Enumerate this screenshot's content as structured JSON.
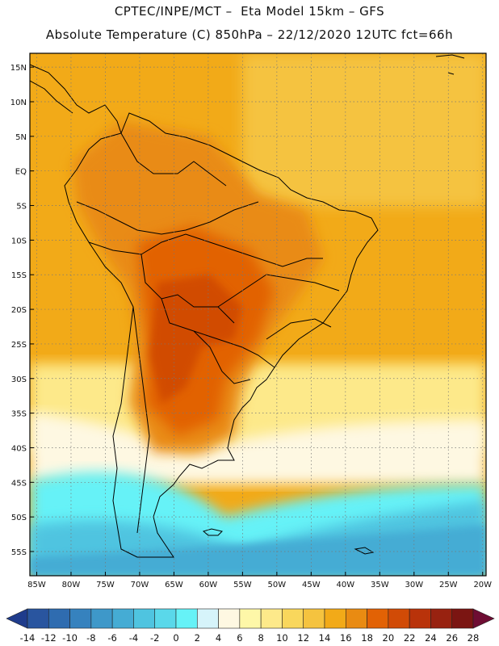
{
  "header": {
    "line1": "CPTEC/INPE/MCT –  Eta Model 15km – GFS",
    "line2": "Absolute Temperature (C) 850hPa – 22/12/2020 12UTC fct=66h"
  },
  "map": {
    "lat_labels": [
      "15N",
      "10N",
      "5N",
      "EQ",
      "5S",
      "10S",
      "15S",
      "20S",
      "25S",
      "30S",
      "35S",
      "40S",
      "45S",
      "50S",
      "55S"
    ],
    "lon_labels": [
      "85W",
      "80W",
      "75W",
      "70W",
      "65W",
      "60W",
      "55W",
      "50W",
      "45W",
      "40W",
      "35W",
      "30W",
      "25W",
      "20W"
    ],
    "lat_values": [
      15,
      10,
      5,
      0,
      -5,
      -10,
      -15,
      -20,
      -25,
      -30,
      -35,
      -40,
      -45,
      -50,
      -55
    ],
    "lon_values": [
      -85,
      -80,
      -75,
      -70,
      -65,
      -60,
      -55,
      -50,
      -45,
      -40,
      -35,
      -30,
      -25,
      -20
    ],
    "extent": {
      "lon_min": -86,
      "lon_max": -19.5,
      "lat_min": -58.5,
      "lat_max": 17
    }
  },
  "legend": {
    "labels": [
      "-14",
      "-12",
      "-10",
      "-8",
      "-6",
      "-4",
      "-2",
      "0",
      "2",
      "4",
      "6",
      "8",
      "10",
      "12",
      "14",
      "16",
      "18",
      "20",
      "22",
      "24",
      "26",
      "28"
    ],
    "colors": [
      "#1f3c8c",
      "#29559f",
      "#2f6cb0",
      "#3682be",
      "#3e98c9",
      "#45acd4",
      "#4fc4e0",
      "#5ad8ea",
      "#66f2f7",
      "#d6f4fa",
      "#fef8e2",
      "#fef7a8",
      "#fde98a",
      "#f9d75c",
      "#f5c33f",
      "#f2aa18",
      "#e98b12",
      "#e26205",
      "#d14b06",
      "#b9330a",
      "#982210",
      "#7b1512",
      "#6e0d33"
    ]
  }
}
